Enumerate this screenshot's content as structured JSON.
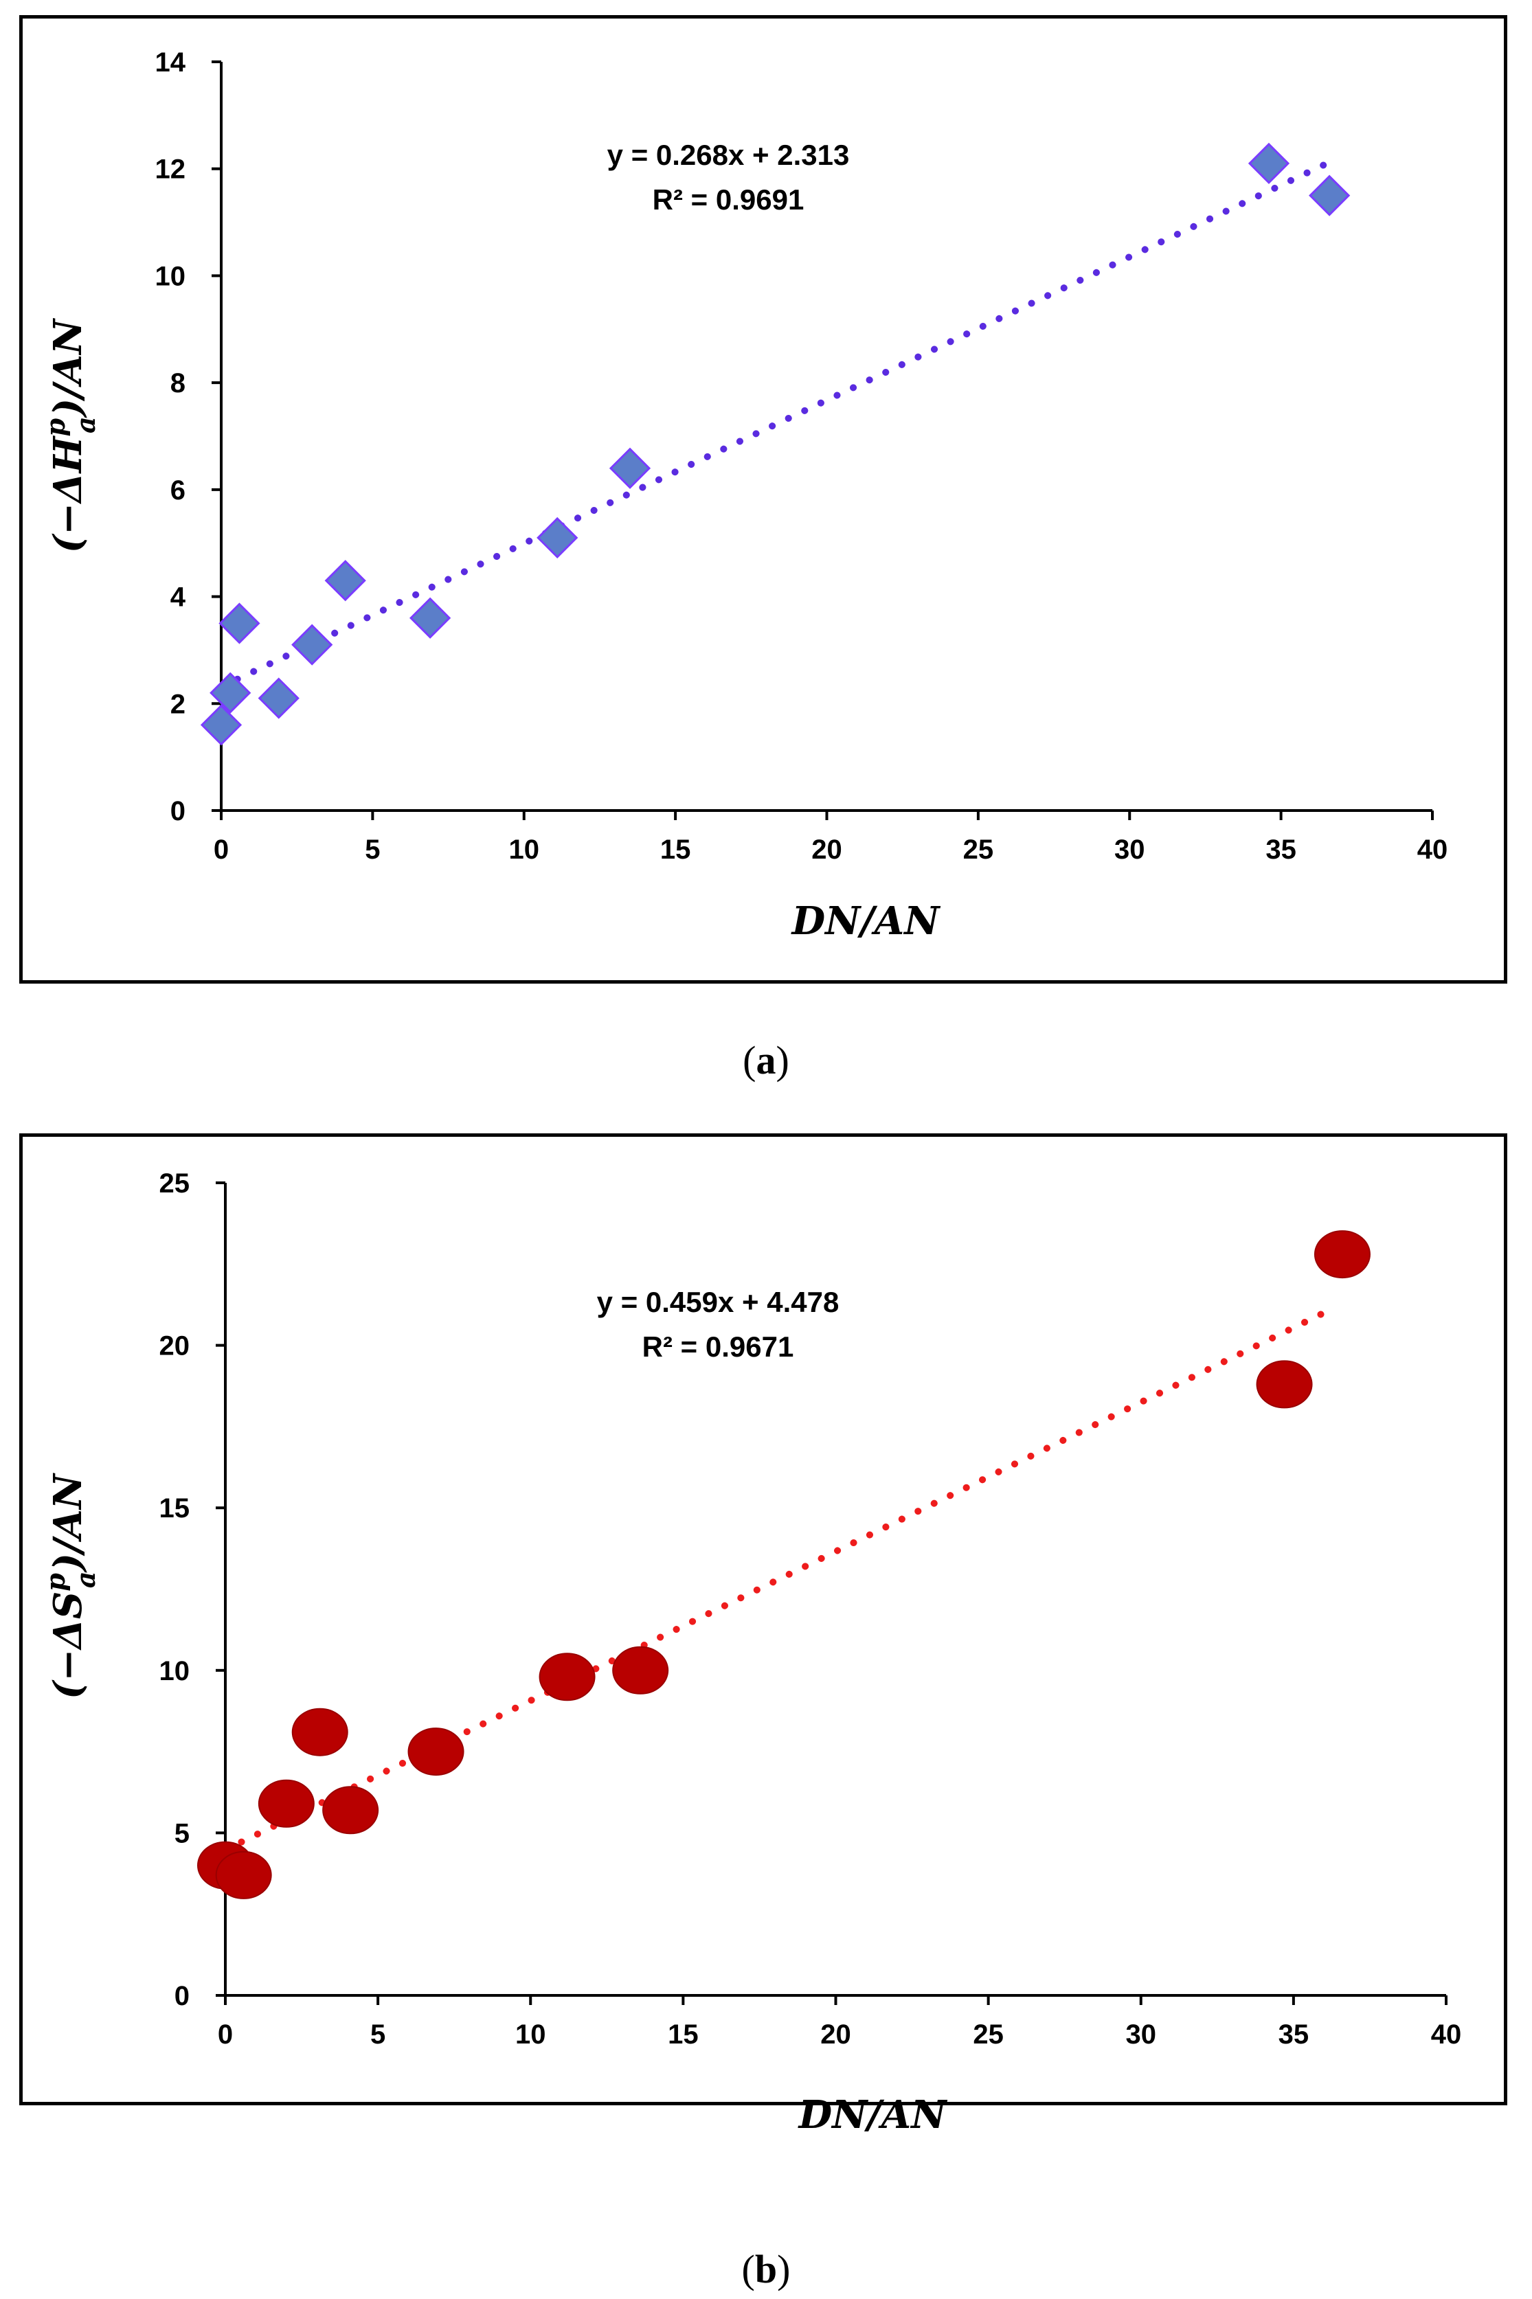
{
  "chart_data": [
    {
      "panel": "a",
      "type": "scatter",
      "caption_letter": "a",
      "xlabel": "DN/AN",
      "ylabel": {
        "prefix": "(−ΔH",
        "sup": "p",
        "sub": "a",
        "suffix": ")/AN"
      },
      "xlim": [
        0,
        40
      ],
      "ylim": [
        0,
        14
      ],
      "xticks": [
        0,
        5,
        10,
        15,
        20,
        25,
        30,
        35,
        40
      ],
      "yticks": [
        0,
        2,
        4,
        6,
        8,
        10,
        12,
        14
      ],
      "marker": "diamond",
      "marker_color": "#5b7ec9",
      "marker_edge": "#7a3cff",
      "trend_color": "#5a2be0",
      "trend": {
        "slope": 0.268,
        "intercept": 2.313,
        "x_range": [
          0,
          36.6
        ]
      },
      "equation": "y = 0.268x + 2.313",
      "r2": "R² = 0.9691",
      "points": [
        {
          "x": 0.0,
          "y": 1.6
        },
        {
          "x": 0.3,
          "y": 2.2
        },
        {
          "x": 0.6,
          "y": 3.5
        },
        {
          "x": 1.9,
          "y": 2.1
        },
        {
          "x": 3.0,
          "y": 3.1
        },
        {
          "x": 4.1,
          "y": 4.3
        },
        {
          "x": 6.9,
          "y": 3.6
        },
        {
          "x": 11.1,
          "y": 5.1
        },
        {
          "x": 13.5,
          "y": 6.4
        },
        {
          "x": 34.6,
          "y": 12.1
        },
        {
          "x": 36.6,
          "y": 11.5
        }
      ]
    },
    {
      "panel": "b",
      "type": "scatter",
      "caption_letter": "b",
      "xlabel": "DN/AN",
      "ylabel": {
        "prefix": "(−ΔS",
        "sup": "p",
        "sub": "a",
        "suffix": ")/AN"
      },
      "xlim": [
        0,
        40
      ],
      "ylim": [
        0,
        25
      ],
      "xticks": [
        0,
        5,
        10,
        15,
        20,
        25,
        30,
        35,
        40
      ],
      "yticks": [
        0,
        5,
        10,
        15,
        20,
        25
      ],
      "marker": "circle",
      "marker_color": "#b80000",
      "marker_edge": "#9a0000",
      "trend_color": "#ee1c1c",
      "trend": {
        "slope": 0.459,
        "intercept": 4.478,
        "x_range": [
          0,
          36.0
        ]
      },
      "equation": "y = 0.459x + 4.478",
      "r2": "R² = 0.9671",
      "points": [
        {
          "x": 0.0,
          "y": 4.0
        },
        {
          "x": 0.6,
          "y": 3.7
        },
        {
          "x": 2.0,
          "y": 5.9
        },
        {
          "x": 3.1,
          "y": 8.1
        },
        {
          "x": 4.1,
          "y": 5.7
        },
        {
          "x": 6.9,
          "y": 7.5
        },
        {
          "x": 11.2,
          "y": 9.8
        },
        {
          "x": 13.6,
          "y": 10.0
        },
        {
          "x": 34.7,
          "y": 18.8
        },
        {
          "x": 36.6,
          "y": 22.8
        }
      ]
    }
  ]
}
